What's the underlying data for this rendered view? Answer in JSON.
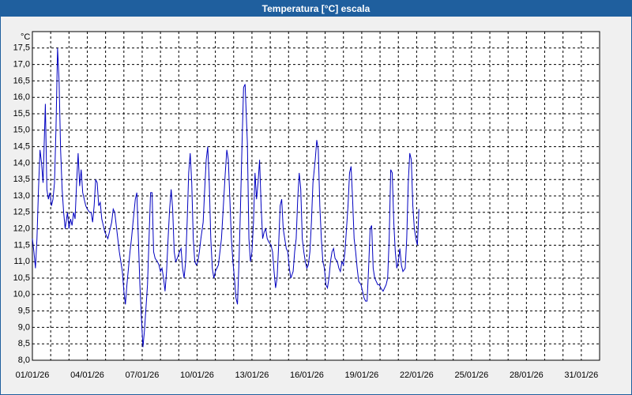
{
  "chart_data": {
    "type": "line",
    "title": "Temperatura [°C] escala",
    "ylabel": "°C",
    "xlim": [
      0,
      744
    ],
    "ylim": [
      8,
      18
    ],
    "grid": true,
    "xticks": [
      {
        "value": 0,
        "label": "01/01/26"
      },
      {
        "value": 72,
        "label": "04/01/26"
      },
      {
        "value": 144,
        "label": "07/01/26"
      },
      {
        "value": 216,
        "label": "10/01/26"
      },
      {
        "value": 288,
        "label": "13/01/26"
      },
      {
        "value": 360,
        "label": "16/01/26"
      },
      {
        "value": 432,
        "label": "19/01/26"
      },
      {
        "value": 504,
        "label": "22/01/26"
      },
      {
        "value": 576,
        "label": "25/01/26"
      },
      {
        "value": 648,
        "label": "28/01/26"
      },
      {
        "value": 720,
        "label": "31/01/26"
      }
    ],
    "x_minor_ticks": [
      24,
      48,
      96,
      120,
      168,
      192,
      240,
      264,
      312,
      336,
      384,
      408,
      456,
      480,
      528,
      552,
      600,
      624,
      672,
      696,
      744
    ],
    "yticks": [
      {
        "value": 8,
        "label": "8,0"
      },
      {
        "value": 8.5,
        "label": "8,5"
      },
      {
        "value": 9,
        "label": "9,0"
      },
      {
        "value": 9.5,
        "label": "9,5"
      },
      {
        "value": 10,
        "label": "10,0"
      },
      {
        "value": 10.5,
        "label": "10,5"
      },
      {
        "value": 11,
        "label": "11,0"
      },
      {
        "value": 11.5,
        "label": "11,5"
      },
      {
        "value": 12,
        "label": "12,0"
      },
      {
        "value": 12.5,
        "label": "12,5"
      },
      {
        "value": 13,
        "label": "13,0"
      },
      {
        "value": 13.5,
        "label": "13,5"
      },
      {
        "value": 14,
        "label": "14,0"
      },
      {
        "value": 14.5,
        "label": "14,5"
      },
      {
        "value": 15,
        "label": "15,0"
      },
      {
        "value": 15.5,
        "label": "15,5"
      },
      {
        "value": 16,
        "label": "16,0"
      },
      {
        "value": 16.5,
        "label": "16,5"
      },
      {
        "value": 17,
        "label": "17,0"
      },
      {
        "value": 17.5,
        "label": "17,5"
      }
    ],
    "x": [
      0,
      2,
      4,
      6,
      8,
      10,
      12,
      14,
      17,
      19,
      21,
      23,
      25,
      27,
      29,
      31,
      33,
      35,
      37,
      39,
      41,
      43,
      46,
      48,
      50,
      52,
      54,
      56,
      58,
      60,
      62,
      64,
      66,
      68,
      70,
      72,
      75,
      77,
      79,
      81,
      83,
      85,
      87,
      89,
      91,
      93,
      95,
      97,
      99,
      101,
      104,
      106,
      108,
      110,
      112,
      114,
      116,
      118,
      120,
      122,
      124,
      126,
      128,
      130,
      132,
      135,
      137,
      139,
      141,
      143,
      145,
      147,
      149,
      151,
      153,
      155,
      157,
      159,
      161,
      164,
      166,
      168,
      170,
      172,
      174,
      176,
      178,
      180,
      182,
      184,
      186,
      188,
      190,
      193,
      195,
      197,
      199,
      201,
      203,
      205,
      207,
      209,
      211,
      213,
      215,
      217,
      219,
      221,
      224,
      226,
      228,
      230,
      232,
      234,
      236,
      238,
      240,
      242,
      244,
      246,
      248,
      250,
      253,
      255,
      257,
      259,
      261,
      263,
      265,
      267,
      269,
      271,
      273,
      275,
      277,
      279,
      282,
      284,
      286,
      288,
      290,
      292,
      294,
      296,
      298,
      300,
      302,
      304,
      306,
      308,
      310,
      313,
      315,
      317,
      319,
      321,
      323,
      325,
      327,
      329,
      331,
      333,
      335,
      337,
      339,
      342,
      344,
      346,
      348,
      350,
      352,
      354,
      356,
      358,
      360,
      362,
      364,
      366,
      368,
      371,
      373,
      375,
      377,
      379,
      381,
      383,
      385,
      387,
      389,
      391,
      393,
      395,
      397,
      400,
      402,
      404,
      406,
      408,
      410,
      412,
      414,
      416,
      418,
      420,
      422,
      424,
      426,
      428,
      431,
      433,
      435,
      437,
      439,
      441,
      443,
      445,
      447,
      449,
      451,
      453,
      455,
      457,
      460,
      462,
      464,
      466,
      468,
      470,
      472,
      474,
      476,
      478,
      480,
      482,
      484,
      486,
      489,
      491,
      493,
      495,
      497,
      499,
      501,
      503,
      505,
      507
    ],
    "series": [
      {
        "color": "#0000c0",
        "values": [
          11.7,
          11.3,
          10.8,
          11.7,
          13.2,
          14.4,
          14.0,
          13.4,
          15.8,
          13.2,
          12.9,
          13.1,
          12.7,
          12.9,
          13.4,
          15.1,
          17.5,
          16.5,
          14.4,
          13.2,
          12.5,
          12.0,
          12.5,
          12.0,
          12.3,
          12.1,
          12.5,
          12.3,
          13.4,
          14.3,
          13.3,
          13.8,
          13.1,
          12.9,
          12.7,
          12.6,
          12.5,
          12.5,
          12.2,
          12.7,
          13.5,
          13.4,
          12.7,
          12.8,
          12.3,
          12.1,
          11.9,
          11.8,
          11.7,
          11.9,
          12.2,
          12.6,
          12.5,
          12.1,
          11.7,
          11.3,
          11.0,
          10.7,
          10.1,
          9.7,
          10.3,
          10.8,
          11.3,
          11.7,
          12.2,
          12.9,
          13.1,
          11.7,
          10.3,
          9.3,
          8.4,
          8.9,
          9.6,
          10.3,
          11.7,
          13.1,
          13.1,
          11.3,
          11.1,
          11.0,
          10.9,
          10.7,
          10.8,
          10.5,
          10.1,
          10.7,
          11.7,
          12.6,
          13.2,
          12.6,
          11.3,
          11.0,
          11.1,
          11.3,
          11.4,
          10.8,
          10.5,
          11.0,
          12.2,
          13.7,
          14.3,
          13.4,
          11.7,
          11.0,
          10.9,
          11.0,
          11.3,
          11.7,
          12.2,
          13.2,
          14.1,
          14.5,
          13.4,
          11.7,
          10.8,
          10.5,
          10.7,
          10.8,
          10.9,
          11.3,
          11.7,
          12.5,
          13.7,
          14.4,
          14.1,
          12.9,
          11.7,
          11.0,
          10.5,
          9.9,
          9.7,
          11.0,
          12.7,
          14.6,
          16.3,
          16.4,
          14.6,
          11.7,
          11.0,
          11.3,
          12.2,
          13.7,
          12.9,
          13.4,
          14.1,
          12.7,
          11.7,
          11.9,
          12.0,
          11.7,
          11.6,
          11.5,
          11.3,
          10.7,
          10.2,
          10.5,
          11.5,
          12.7,
          12.9,
          12.0,
          11.7,
          11.4,
          11.3,
          10.8,
          10.5,
          10.7,
          11.3,
          11.7,
          12.9,
          13.7,
          13.2,
          11.7,
          11.3,
          11.0,
          10.8,
          10.9,
          11.3,
          12.2,
          13.4,
          14.1,
          14.7,
          14.4,
          12.7,
          11.7,
          11.0,
          10.8,
          10.3,
          10.2,
          10.5,
          11.0,
          11.3,
          11.4,
          11.1,
          11.0,
          10.8,
          10.7,
          11.0,
          10.9,
          11.3,
          12.0,
          12.7,
          13.7,
          13.9,
          12.9,
          11.7,
          11.3,
          10.8,
          10.4,
          10.3,
          10.1,
          9.9,
          9.8,
          9.8,
          10.8,
          12.0,
          12.1,
          10.8,
          10.5,
          10.4,
          10.3,
          10.3,
          10.2,
          10.1,
          10.2,
          10.3,
          10.5,
          11.7,
          13.8,
          13.7,
          12.2,
          11.3,
          10.8,
          11.0,
          11.4,
          10.9,
          10.7,
          10.8,
          11.7,
          13.4,
          14.3,
          14.1,
          12.7,
          12.0,
          11.7,
          11.5,
          12.6
        ]
      }
    ]
  }
}
